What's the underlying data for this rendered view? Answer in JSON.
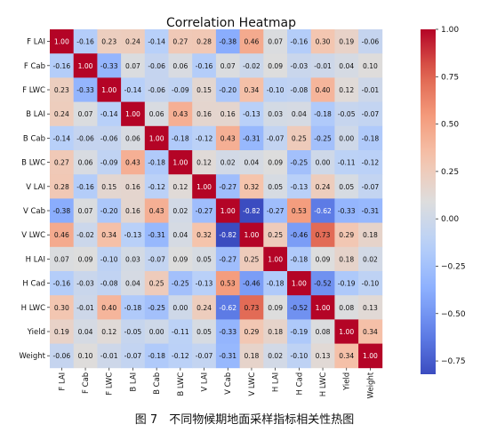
{
  "chart_data": {
    "type": "heatmap",
    "title": "Correlation Heatmap",
    "row_labels": [
      "F LAI",
      "F Cab",
      "F LWC",
      "B LAI",
      "B Cab",
      "B LWC",
      "V LAI",
      "V Cab",
      "V LWC",
      "H LAI",
      "H Cad",
      "H LWC",
      "Yield",
      "Weight"
    ],
    "col_labels": [
      "F LAI",
      "F Cab",
      "F LWC",
      "B LAI",
      "B Cab",
      "B LWC",
      "V LAI",
      "V Cab",
      "V LWC",
      "H LAI",
      "H Cad",
      "H LWC",
      "Yield",
      "Weight"
    ],
    "values": [
      [
        1.0,
        -0.16,
        0.23,
        0.24,
        -0.14,
        0.27,
        0.28,
        -0.38,
        0.46,
        0.07,
        -0.16,
        0.3,
        0.19,
        -0.06
      ],
      [
        -0.16,
        1.0,
        -0.33,
        0.07,
        -0.06,
        0.06,
        -0.16,
        0.07,
        -0.02,
        0.09,
        -0.03,
        -0.01,
        0.04,
        0.1
      ],
      [
        0.23,
        -0.33,
        1.0,
        -0.14,
        -0.06,
        -0.09,
        0.15,
        -0.2,
        0.34,
        -0.1,
        -0.08,
        0.4,
        0.12,
        -0.01
      ],
      [
        0.24,
        0.07,
        -0.14,
        1.0,
        0.06,
        0.43,
        0.16,
        0.16,
        -0.13,
        0.03,
        0.04,
        -0.18,
        -0.05,
        -0.07
      ],
      [
        -0.14,
        -0.06,
        -0.06,
        0.06,
        1.0,
        -0.18,
        -0.12,
        0.43,
        -0.31,
        -0.07,
        0.25,
        -0.25,
        -0.0,
        -0.18
      ],
      [
        0.27,
        0.06,
        -0.09,
        0.43,
        -0.18,
        1.0,
        0.12,
        0.02,
        0.04,
        0.09,
        -0.25,
        -0.0,
        -0.11,
        -0.12
      ],
      [
        0.28,
        -0.16,
        0.15,
        0.16,
        -0.12,
        0.12,
        1.0,
        -0.27,
        0.32,
        0.05,
        -0.13,
        0.24,
        0.05,
        -0.07
      ],
      [
        -0.38,
        0.07,
        -0.2,
        0.16,
        0.43,
        0.02,
        -0.27,
        1.0,
        -0.82,
        -0.27,
        0.53,
        -0.62,
        -0.33,
        -0.31
      ],
      [
        0.46,
        -0.02,
        0.34,
        -0.13,
        -0.31,
        0.04,
        0.32,
        -0.82,
        1.0,
        0.25,
        -0.46,
        0.73,
        0.29,
        0.18
      ],
      [
        0.07,
        0.09,
        -0.1,
        0.03,
        -0.07,
        0.09,
        0.05,
        -0.27,
        0.25,
        1.0,
        -0.18,
        0.09,
        0.18,
        0.02
      ],
      [
        -0.16,
        -0.03,
        -0.08,
        0.04,
        0.25,
        -0.25,
        -0.13,
        0.53,
        -0.46,
        -0.18,
        1.0,
        -0.52,
        -0.19,
        -0.1
      ],
      [
        0.3,
        -0.01,
        0.4,
        -0.18,
        -0.25,
        -0.0,
        0.24,
        -0.62,
        0.73,
        0.09,
        -0.52,
        1.0,
        0.08,
        0.13
      ],
      [
        0.19,
        0.04,
        0.12,
        -0.05,
        -0.0,
        -0.11,
        0.05,
        -0.33,
        0.29,
        0.18,
        -0.19,
        0.08,
        1.0,
        0.34
      ],
      [
        -0.06,
        0.1,
        -0.01,
        -0.07,
        -0.18,
        -0.12,
        -0.07,
        -0.31,
        0.18,
        0.02,
        -0.1,
        0.13,
        0.34,
        1.0
      ]
    ],
    "colorscale": "coolwarm",
    "vmin": -0.82,
    "vmax": 1.0,
    "colorbar_ticks": [
      "1.00",
      "0.75",
      "0.50",
      "0.25",
      "0.00",
      "−0.25",
      "−0.50",
      "−0.75"
    ],
    "colorbar_tick_values": [
      1.0,
      0.75,
      0.5,
      0.25,
      0.0,
      -0.25,
      -0.5,
      -0.75
    ]
  },
  "caption": "图 7　不同物候期地面采样指标相关性热图"
}
